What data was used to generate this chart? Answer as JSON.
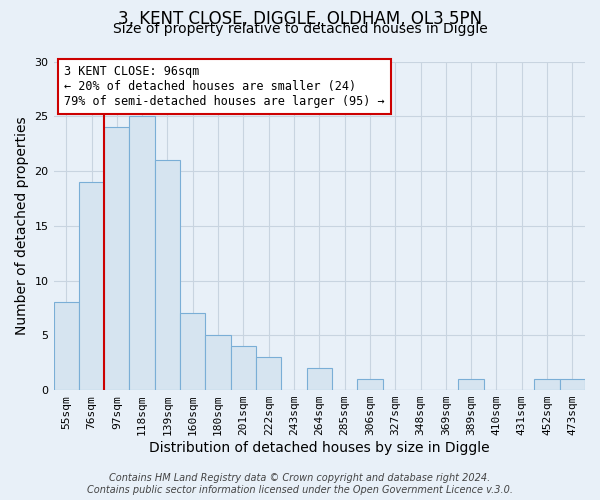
{
  "title": "3, KENT CLOSE, DIGGLE, OLDHAM, OL3 5PN",
  "subtitle": "Size of property relative to detached houses in Diggle",
  "xlabel": "Distribution of detached houses by size in Diggle",
  "ylabel": "Number of detached properties",
  "bar_labels": [
    "55sqm",
    "76sqm",
    "97sqm",
    "118sqm",
    "139sqm",
    "160sqm",
    "180sqm",
    "201sqm",
    "222sqm",
    "243sqm",
    "264sqm",
    "285sqm",
    "306sqm",
    "327sqm",
    "348sqm",
    "369sqm",
    "389sqm",
    "410sqm",
    "431sqm",
    "452sqm",
    "473sqm"
  ],
  "bar_values": [
    8,
    19,
    24,
    25,
    21,
    7,
    5,
    4,
    3,
    0,
    2,
    0,
    1,
    0,
    0,
    0,
    1,
    0,
    0,
    1,
    1
  ],
  "bar_color": "#d6e4f0",
  "bar_edge_color": "#7aaed6",
  "ylim": [
    0,
    30
  ],
  "yticks": [
    0,
    5,
    10,
    15,
    20,
    25,
    30
  ],
  "annotation_line1": "3 KENT CLOSE: 96sqm",
  "annotation_line2": "← 20% of detached houses are smaller (24)",
  "annotation_line3": "79% of semi-detached houses are larger (95) →",
  "annotation_box_color": "#ffffff",
  "annotation_box_edge_color": "#cc0000",
  "vline_color": "#cc0000",
  "footer_line1": "Contains HM Land Registry data © Crown copyright and database right 2024.",
  "footer_line2": "Contains public sector information licensed under the Open Government Licence v.3.0.",
  "background_color": "#e8f0f8",
  "plot_background_color": "#e8f0f8",
  "grid_color": "#c8d4e0",
  "title_fontsize": 12,
  "subtitle_fontsize": 10,
  "tick_fontsize": 8,
  "axis_label_fontsize": 10,
  "footer_fontsize": 7
}
